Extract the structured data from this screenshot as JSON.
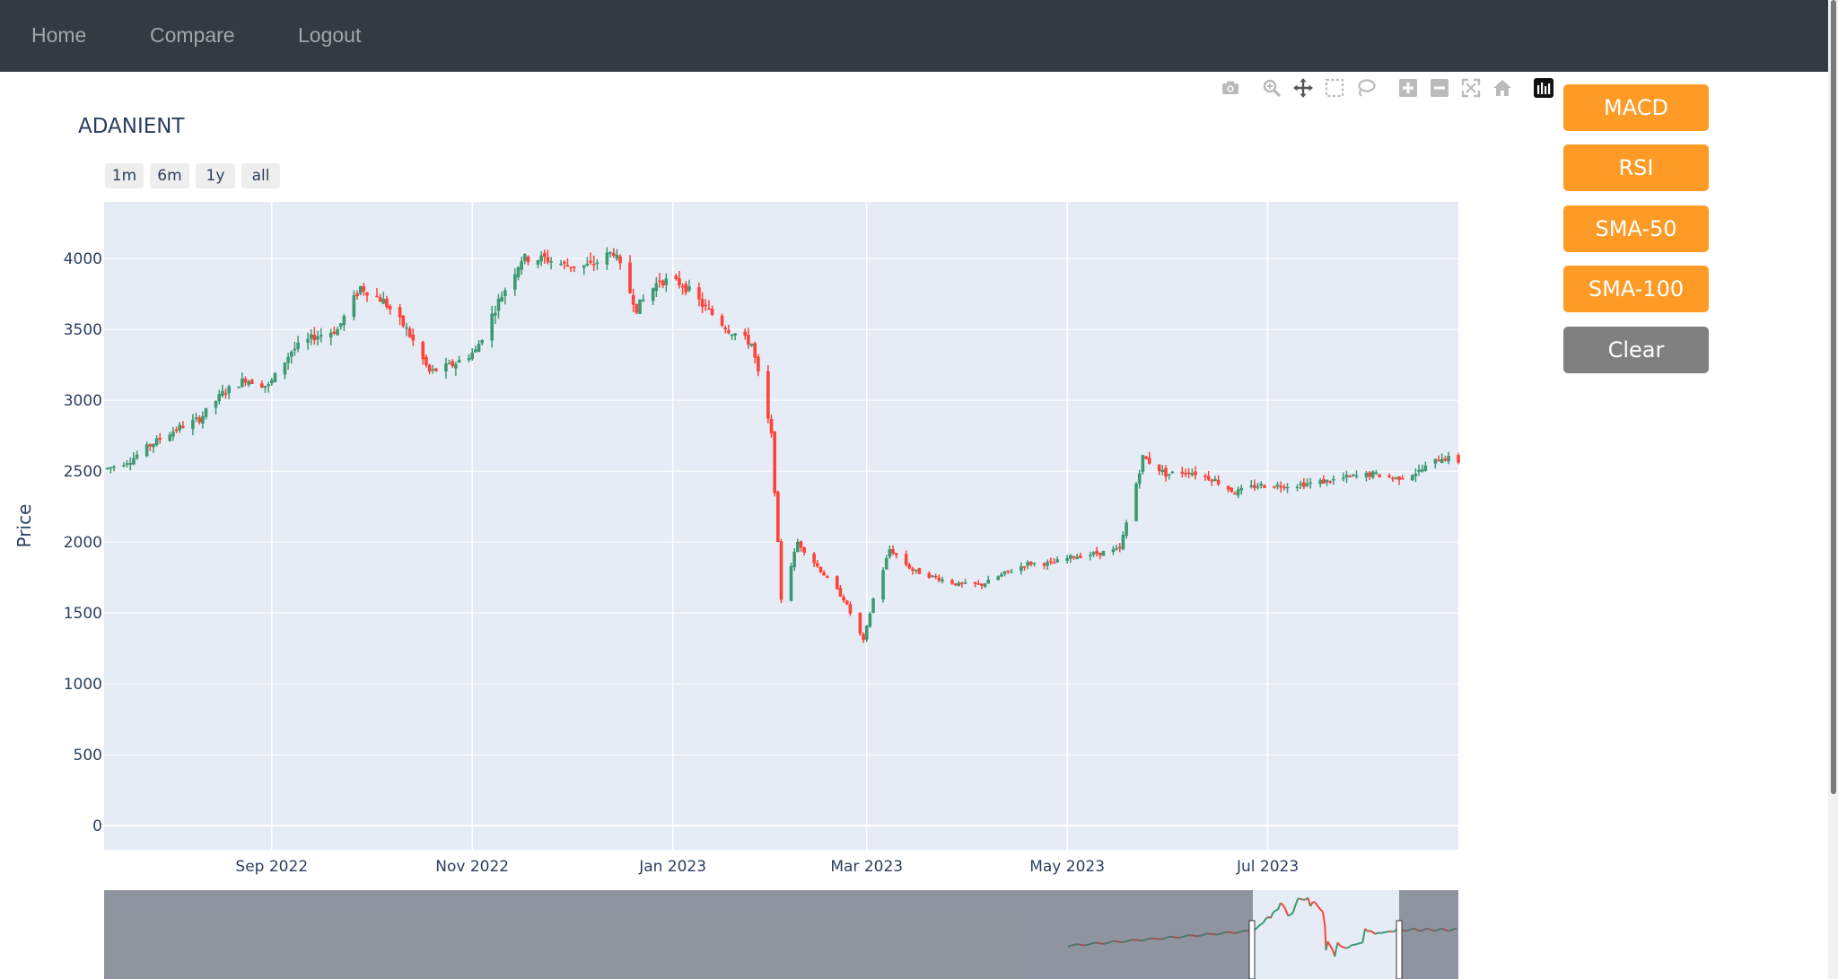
{
  "nav": {
    "links": [
      {
        "label": "Home"
      },
      {
        "label": "Compare"
      },
      {
        "label": "Logout"
      }
    ]
  },
  "modebar": {
    "icons": [
      "camera-icon",
      "zoom-icon",
      "pan-icon",
      "box-select-icon",
      "lasso-select-icon",
      "zoom-in-icon",
      "zoom-out-icon",
      "autoscale-icon",
      "reset-axes-icon",
      "plotly-logo-icon"
    ]
  },
  "range_selector": {
    "buttons": [
      {
        "label": "1m"
      },
      {
        "label": "6m"
      },
      {
        "label": "1y"
      },
      {
        "label": "all"
      }
    ]
  },
  "indicators": {
    "buttons": [
      {
        "label": "MACD",
        "color": "#fd9b26"
      },
      {
        "label": "RSI",
        "color": "#fd9b26"
      },
      {
        "label": "SMA-50",
        "color": "#fd9b26"
      },
      {
        "label": "SMA-100",
        "color": "#fd9b26"
      },
      {
        "label": "Clear",
        "color": "#808080"
      }
    ]
  },
  "colors": {
    "navbar": "#343a40",
    "plot_bg": "#e5ecf6",
    "increasing": "#3d9970",
    "decreasing": "#ff4136",
    "text": "#2a3f5f"
  },
  "chart_data": {
    "type": "candlestick",
    "title": "ADANIENT",
    "ylabel": "Price",
    "xlabel": "",
    "ylim": [
      -170,
      4400
    ],
    "yticks": [
      0,
      500,
      1000,
      1500,
      2000,
      2500,
      3000,
      3500,
      4000
    ],
    "xrange": [
      "2022-07-12",
      "2023-08-28"
    ],
    "xticks": [
      {
        "date": "2022-09-01",
        "label": "Sep 2022"
      },
      {
        "date": "2022-11-01",
        "label": "Nov 2022"
      },
      {
        "date": "2023-01-01",
        "label": "Jan 2023"
      },
      {
        "date": "2023-03-01",
        "label": "Mar 2023"
      },
      {
        "date": "2023-05-01",
        "label": "May 2023"
      },
      {
        "date": "2023-07-01",
        "label": "Jul 2023"
      }
    ],
    "grid": true,
    "rangeslider": true,
    "close_series": [
      [
        "2022-07-13",
        2520
      ],
      [
        "2022-07-20",
        2580
      ],
      [
        "2022-07-27",
        2700
      ],
      [
        "2022-08-03",
        2800
      ],
      [
        "2022-08-10",
        2870
      ],
      [
        "2022-08-17",
        3050
      ],
      [
        "2022-08-24",
        3150
      ],
      [
        "2022-08-31",
        3100
      ],
      [
        "2022-09-07",
        3350
      ],
      [
        "2022-09-14",
        3450
      ],
      [
        "2022-09-21",
        3500
      ],
      [
        "2022-09-28",
        3800
      ],
      [
        "2022-10-05",
        3700
      ],
      [
        "2022-10-12",
        3500
      ],
      [
        "2022-10-19",
        3200
      ],
      [
        "2022-10-26",
        3250
      ],
      [
        "2022-11-02",
        3350
      ],
      [
        "2022-11-09",
        3700
      ],
      [
        "2022-11-16",
        4000
      ],
      [
        "2022-11-23",
        4000
      ],
      [
        "2022-11-30",
        3950
      ],
      [
        "2022-12-07",
        3950
      ],
      [
        "2022-12-14",
        4050
      ],
      [
        "2022-12-21",
        3650
      ],
      [
        "2022-12-28",
        3850
      ],
      [
        "2023-01-04",
        3820
      ],
      [
        "2023-01-11",
        3650
      ],
      [
        "2023-01-18",
        3500
      ],
      [
        "2023-01-25",
        3400
      ],
      [
        "2023-01-31",
        2750
      ],
      [
        "2023-02-03",
        1600
      ],
      [
        "2023-02-08",
        2000
      ],
      [
        "2023-02-15",
        1800
      ],
      [
        "2023-02-22",
        1600
      ],
      [
        "2023-02-28",
        1300
      ],
      [
        "2023-03-03",
        1600
      ],
      [
        "2023-03-08",
        1950
      ],
      [
        "2023-03-15",
        1800
      ],
      [
        "2023-03-22",
        1750
      ],
      [
        "2023-03-29",
        1700
      ],
      [
        "2023-04-05",
        1700
      ],
      [
        "2023-04-12",
        1780
      ],
      [
        "2023-04-19",
        1850
      ],
      [
        "2023-04-26",
        1850
      ],
      [
        "2023-05-03",
        1900
      ],
      [
        "2023-05-10",
        1920
      ],
      [
        "2023-05-17",
        1950
      ],
      [
        "2023-05-24",
        2600
      ],
      [
        "2023-05-31",
        2480
      ],
      [
        "2023-06-07",
        2500
      ],
      [
        "2023-06-14",
        2450
      ],
      [
        "2023-06-21",
        2350
      ],
      [
        "2023-06-28",
        2400
      ],
      [
        "2023-07-05",
        2400
      ],
      [
        "2023-07-12",
        2410
      ],
      [
        "2023-07-19",
        2430
      ],
      [
        "2023-07-26",
        2460
      ],
      [
        "2023-08-02",
        2480
      ],
      [
        "2023-08-09",
        2450
      ],
      [
        "2023-08-16",
        2500
      ],
      [
        "2023-08-23",
        2600
      ],
      [
        "2023-08-28",
        2570
      ]
    ]
  }
}
